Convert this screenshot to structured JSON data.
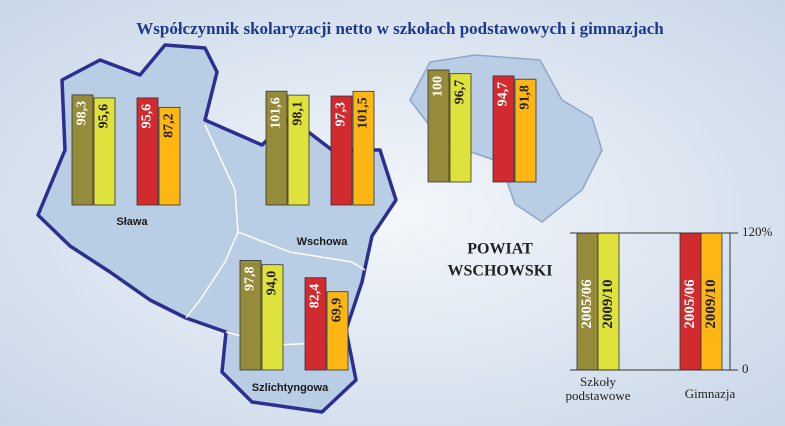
{
  "title": "Współczynnik skolaryzacji netto w szkołach podstawowych i gimnazjach",
  "colors": [
    "#968b3b",
    "#dfe23c",
    "#d12a2f",
    "#fdb614"
  ],
  "regions": [
    {
      "name": "Sława",
      "values": [
        98.3,
        95.6,
        95.6,
        87.2
      ],
      "value_labels": [
        "98,3",
        "95,6",
        "95,6",
        "87,2"
      ]
    },
    {
      "name": "Wschowa",
      "values": [
        101.6,
        98.1,
        97.3,
        101.5
      ],
      "value_labels": [
        "101,6",
        "98,1",
        "97,3",
        "101,5"
      ]
    },
    {
      "name": "Szlichtyngowa",
      "values": [
        97.8,
        94.0,
        82.4,
        69.9
      ],
      "value_labels": [
        "97,8",
        "94,0",
        "82,4",
        "69,9"
      ]
    },
    {
      "name_lines": [
        "POWIAT",
        "WSCHOWSKI"
      ],
      "values": [
        100,
        96.7,
        94.7,
        91.8
      ],
      "value_labels": [
        "100",
        "96,7",
        "94,7",
        "91,8"
      ]
    }
  ],
  "legend": {
    "years": [
      "2005/06",
      "2009/10"
    ],
    "groups": [
      [
        "Szkoły",
        "podstawowe"
      ],
      [
        "Gimnazja"
      ]
    ],
    "ylim": [
      0,
      120
    ],
    "ticks": [
      0,
      {
        "value": 120,
        "label": "120%"
      }
    ]
  }
}
